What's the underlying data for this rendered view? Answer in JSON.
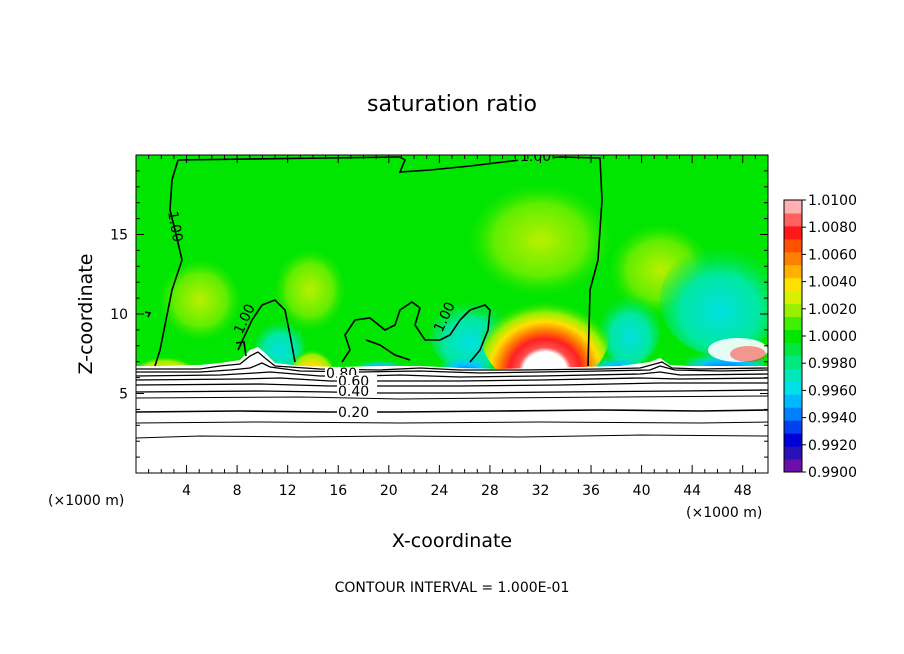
{
  "chart_data": {
    "type": "heatmap",
    "title": "saturation ratio",
    "xlabel": "X-coordinate",
    "ylabel": "Z-coordinate",
    "x_unit_left": "(×1000 m)",
    "x_unit_right": "(×1000 m)",
    "xlim": [
      0,
      50
    ],
    "ylim": [
      0,
      20
    ],
    "x_ticks": [
      4,
      8,
      12,
      16,
      20,
      24,
      28,
      32,
      36,
      40,
      44,
      48
    ],
    "y_ticks": [
      5,
      10,
      15
    ],
    "colorbar": {
      "min": 0.99,
      "max": 1.01,
      "step": 0.001,
      "labels": [
        "1.0100",
        "1.0080",
        "1.0060",
        "1.0040",
        "1.0020",
        "1.0000",
        "0.9980",
        "0.9960",
        "0.9940",
        "0.9920",
        "0.9900"
      ],
      "colors": [
        "#6a0fa8",
        "#2a10b8",
        "#0000d8",
        "#0040f0",
        "#0080ff",
        "#00b8ff",
        "#00e0e8",
        "#00e8b8",
        "#00e880",
        "#00e840",
        "#00e600",
        "#40f000",
        "#98f000",
        "#d8f000",
        "#ffe000",
        "#ffb000",
        "#ff8000",
        "#ff5000",
        "#ff1818",
        "#ff6060",
        "#ffb0b0"
      ]
    },
    "contour_labels": [
      "1.00",
      "1.00",
      "1.00",
      "1.00",
      "0.80",
      "0.60",
      "0.40",
      "0.20"
    ],
    "footer": "CONTOUR INTERVAL = 1.000E-01",
    "ridge_terrain_top_km": 6.7
  }
}
